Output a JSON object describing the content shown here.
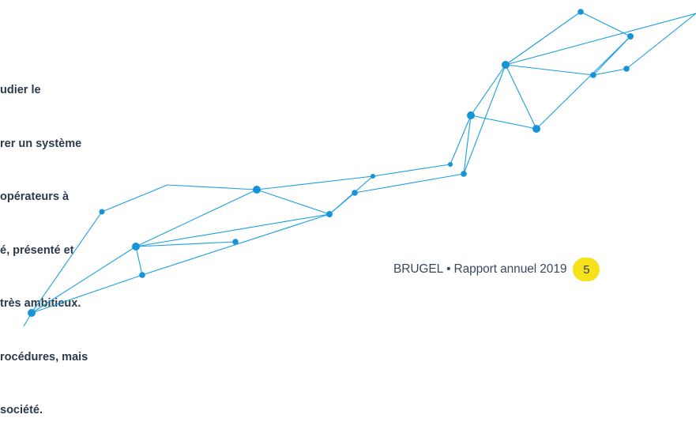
{
  "body_text": {
    "lines": [
      "udier le",
      "rer un système",
      " opérateurs à",
      "é, présenté et",
      " très ambitieux.",
      "rocédures, mais",
      " société."
    ]
  },
  "footer": {
    "organization": "BRUGEL",
    "separator": "•",
    "publication": "Rapport annuel 2019",
    "page_number": "5"
  },
  "colors": {
    "network_line": "#1a9fe0",
    "network_node": "#1793d8",
    "page_badge": "#f7e11a",
    "text": "#2b3a4a"
  },
  "icons": {
    "network": "network-graph-decoration"
  }
}
